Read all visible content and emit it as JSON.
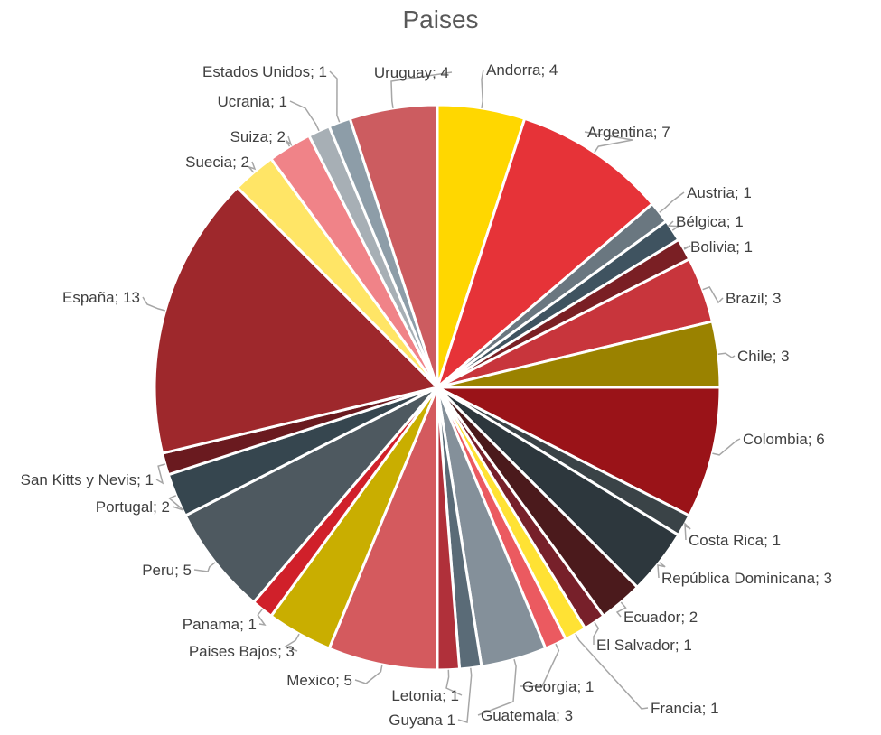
{
  "chart_data": {
    "type": "pie",
    "title": "Paises",
    "slices": [
      {
        "label": "Andorra; 4",
        "name": "Andorra",
        "value": 4,
        "color": "#FFD700"
      },
      {
        "label": "Argentina; 7",
        "name": "Argentina",
        "value": 7,
        "color": "#E63338"
      },
      {
        "label": "Austria; 1",
        "name": "Austria",
        "value": 1,
        "color": "#6A7780"
      },
      {
        "label": "Bélgica; 1",
        "name": "Bélgica",
        "value": 1,
        "color": "#3F5360"
      },
      {
        "label": "Bolivia; 1",
        "name": "Bolivia",
        "value": 1,
        "color": "#7A1F24"
      },
      {
        "label": "Brazil; 3",
        "name": "Brazil",
        "value": 3,
        "color": "#C8353C"
      },
      {
        "label": "Chile; 3",
        "name": "Chile",
        "value": 3,
        "color": "#9A8200"
      },
      {
        "label": "Colombia; 6",
        "name": "Colombia",
        "value": 6,
        "color": "#9A1318"
      },
      {
        "label": "Costa Rica; 1",
        "name": "Costa Rica",
        "value": 1,
        "color": "#3A4347"
      },
      {
        "label": "República Dominicana; 3",
        "name": "República Dominicana",
        "value": 3,
        "color": "#2D373D"
      },
      {
        "label": "Ecuador; 2",
        "name": "Ecuador",
        "value": 2,
        "color": "#4B1A1C"
      },
      {
        "label": "El Salvador; 1",
        "name": "El Salvador",
        "value": 1,
        "color": "#77202A"
      },
      {
        "label": "Francia; 1",
        "name": "Francia",
        "value": 1,
        "color": "#FFE234"
      },
      {
        "label": "Georgia; 1",
        "name": "Georgia",
        "value": 1,
        "color": "#EB5A60"
      },
      {
        "label": "Guatemala; 3",
        "name": "Guatemala",
        "value": 3,
        "color": "#84909A"
      },
      {
        "label": "Guyana 1",
        "name": "Guyana",
        "value": 1,
        "color": "#5A6B77"
      },
      {
        "label": "Letonia; 1",
        "name": "Letonia",
        "value": 1,
        "color": "#B0303A"
      },
      {
        "label": "Mexico; 5",
        "name": "Mexico",
        "value": 5,
        "color": "#D45A5E"
      },
      {
        "label": "Paises Bajos; 3",
        "name": "Paises Bajos",
        "value": 3,
        "color": "#C9AE00"
      },
      {
        "label": "Panama; 1",
        "name": "Panama",
        "value": 1,
        "color": "#D0202A"
      },
      {
        "label": "Peru; 5",
        "name": "Peru",
        "value": 5,
        "color": "#4E5960"
      },
      {
        "label": "Portugal; 2",
        "name": "Portugal",
        "value": 2,
        "color": "#36464F"
      },
      {
        "label": "San Kitts y Nevis; 1",
        "name": "San Kitts y Nevis",
        "value": 1,
        "color": "#6A1A1F"
      },
      {
        "label": "España; 13",
        "name": "España",
        "value": 13,
        "color": "#9E282C"
      },
      {
        "label": "Suecia; 2",
        "name": "Suecia",
        "value": 2,
        "color": "#FFE566"
      },
      {
        "label": "Suiza; 2",
        "name": "Suiza",
        "value": 2,
        "color": "#F08388"
      },
      {
        "label": "Ucrania; 1",
        "name": "Ucrania",
        "value": 1,
        "color": "#A7AFB5"
      },
      {
        "label": "Estados Unidos; 1",
        "name": "Estados Unidos",
        "value": 1,
        "color": "#8D9DA8"
      },
      {
        "label": "Uruguay; 4",
        "name": "Uruguay",
        "value": 4,
        "color": "#CC5C60"
      }
    ],
    "legend": "none"
  }
}
